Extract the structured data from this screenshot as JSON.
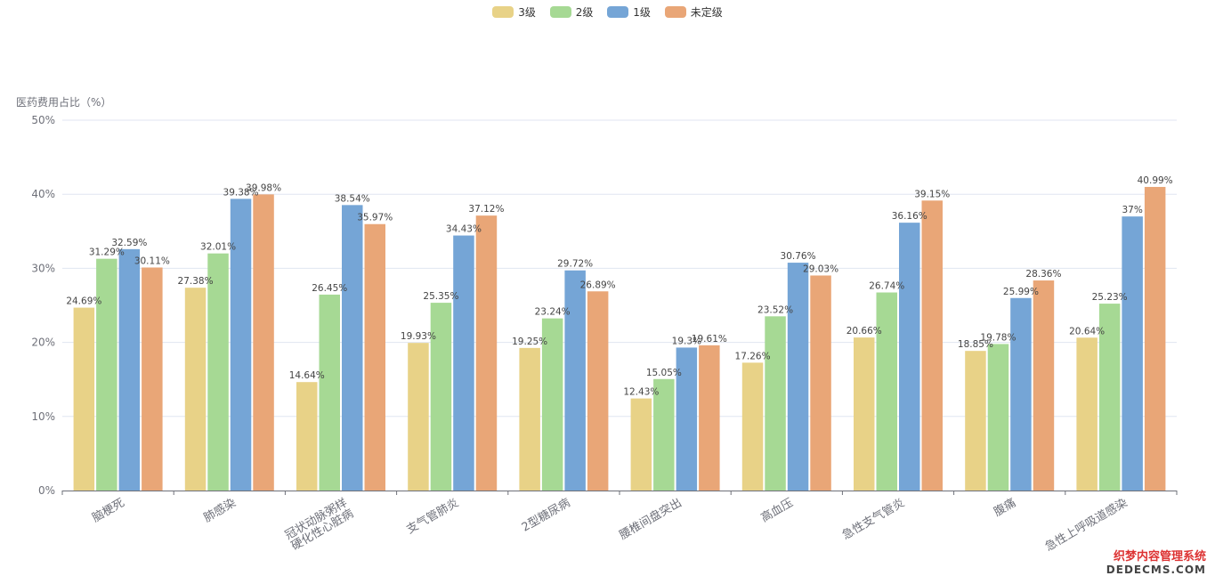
{
  "chart_data": {
    "type": "bar",
    "ylabel": "医药费用占比（%）",
    "ylim": [
      0,
      50
    ],
    "yticks": [
      "0%",
      "10%",
      "20%",
      "30%",
      "40%",
      "50%"
    ],
    "grid": true,
    "legend_position": "top-center",
    "categories": [
      "脑梗死",
      "肺感染",
      "冠状动脉粥样硬化性心脏病",
      "支气管肺炎",
      "2型糖尿病",
      "腰椎间盘突出",
      "高血压",
      "急性支气管炎",
      "腹痛",
      "急性上呼吸道感染"
    ],
    "category_lines": [
      [
        "脑梗死"
      ],
      [
        "肺感染"
      ],
      [
        "冠状动脉粥样",
        "硬化性心脏病"
      ],
      [
        "支气管肺炎"
      ],
      [
        "2型糖尿病"
      ],
      [
        "腰椎间盘突出"
      ],
      [
        "高血压"
      ],
      [
        "急性支气管炎"
      ],
      [
        "腹痛"
      ],
      [
        "急性上呼吸道感染"
      ]
    ],
    "series": [
      {
        "name": "3级",
        "color": "#e8d287",
        "values": [
          24.69,
          27.38,
          14.64,
          19.93,
          19.25,
          12.43,
          17.26,
          20.66,
          18.85,
          20.64
        ],
        "labels": [
          "24.69%",
          "27.38%",
          "14.64%",
          "19.93%",
          "19.25%",
          "12.43%",
          "17.26%",
          "20.66%",
          "18.85%",
          "20.64%"
        ]
      },
      {
        "name": "2级",
        "color": "#a6d994",
        "values": [
          31.29,
          32.01,
          26.45,
          25.35,
          23.24,
          15.05,
          23.52,
          26.74,
          19.78,
          25.23
        ],
        "labels": [
          "31.29%",
          "32.01%",
          "26.45%",
          "25.35%",
          "23.24%",
          "15.05%",
          "23.52%",
          "26.74%",
          "19.78%",
          "25.23%"
        ]
      },
      {
        "name": "1级",
        "color": "#75a5d6",
        "values": [
          32.59,
          39.38,
          38.54,
          34.43,
          29.72,
          19.3,
          30.76,
          36.16,
          25.99,
          37
        ],
        "labels": [
          "32.59%",
          "39.38%",
          "38.54%",
          "34.43%",
          "29.72%",
          "19.3%",
          "30.76%",
          "36.16%",
          "25.99%",
          "37%"
        ]
      },
      {
        "name": "未定级",
        "color": "#e9a677",
        "values": [
          30.11,
          39.98,
          35.97,
          37.12,
          26.89,
          19.61,
          29.03,
          39.15,
          28.36,
          40.99
        ],
        "labels": [
          "30.11%",
          "39.98%",
          "35.97%",
          "37.12%",
          "26.89%",
          "19.61%",
          "29.03%",
          "39.15%",
          "28.36%",
          "40.99%"
        ]
      }
    ]
  },
  "watermark": {
    "line1": "织梦内容管理系统",
    "line2": "DEDECMS.COM"
  }
}
